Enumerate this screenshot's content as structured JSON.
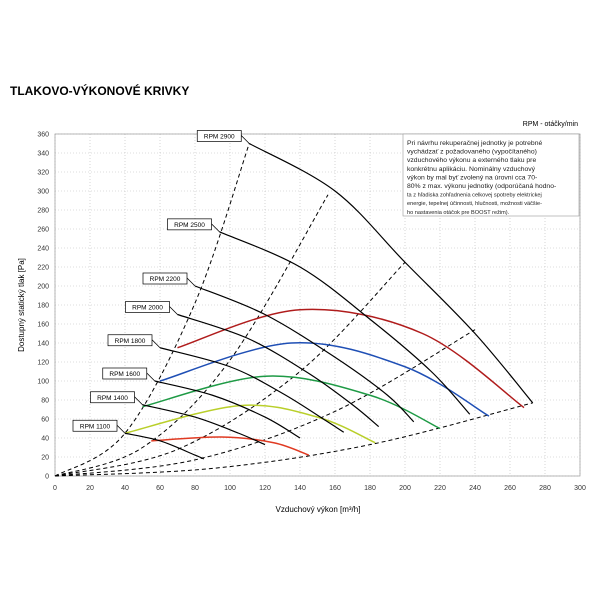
{
  "chart_data": {
    "type": "line",
    "title": "TLAKOVO-VÝKONOVÉ KRIVKY",
    "x_label": "Vzduchový výkon [m³/h]",
    "y_label": "Dostupný statický tlak [Pa]",
    "legend_title": "RPM - otáčky/min",
    "note": [
      "Pri návrhu rekuperačnej jednotky je potrebné",
      "vychádzať z požadovaného (vypočítaného)",
      "vzduchového výkonu a externého tlaku pre",
      "konkrétnu aplikáciu. Nominálny vzduchový",
      "výkon by mal byť zvolený na úrovni cca 70-",
      "80% z max. výkonu jednotky (odporúčaná hodno-",
      "ta z hľadiska zohľadnenia celkovej spotreby elektrickej",
      "energie, tepelnej účinnosti, hlučnosti, možnosti väčšie-",
      "ho nastavenia otáčok pre BOOST režim)."
    ],
    "xlim": [
      0,
      300
    ],
    "ylim": [
      0,
      360
    ],
    "xticks": [
      0,
      20,
      40,
      60,
      80,
      100,
      120,
      140,
      160,
      180,
      200,
      220,
      240,
      260,
      280,
      300
    ],
    "yticks": [
      0,
      20,
      40,
      60,
      80,
      100,
      120,
      140,
      160,
      180,
      200,
      220,
      240,
      260,
      280,
      300,
      320,
      340,
      360
    ],
    "grid": true,
    "series": [
      {
        "name": "RPM 2900",
        "color": "#000000",
        "x": [
          111,
          160,
          200,
          240,
          273
        ],
        "values": [
          350,
          300,
          225,
          150,
          77
        ]
      },
      {
        "name": "RPM 2500",
        "color": "#000000",
        "x": [
          94,
          140,
          180,
          215,
          237
        ],
        "values": [
          257,
          220,
          165,
          110,
          65
        ]
      },
      {
        "name": "RPM 2200",
        "color": "#000000",
        "x": [
          80,
          120,
          160,
          190,
          205
        ],
        "values": [
          200,
          170,
          125,
          85,
          57
        ]
      },
      {
        "name": "RPM 2000",
        "color": "#000000",
        "x": [
          70,
          110,
          145,
          170,
          185
        ],
        "values": [
          170,
          145,
          108,
          75,
          52
        ]
      },
      {
        "name": "RPM 1800",
        "color": "#000000",
        "x": [
          60,
          100,
          130,
          155,
          165
        ],
        "values": [
          135,
          115,
          87,
          58,
          46
        ]
      },
      {
        "name": "RPM 1600",
        "color": "#000000",
        "x": [
          57,
          90,
          120,
          140
        ],
        "values": [
          100,
          85,
          62,
          40
        ]
      },
      {
        "name": "RPM 1400",
        "color": "#000000",
        "x": [
          50,
          80,
          105,
          120
        ],
        "values": [
          75,
          62,
          45,
          33
        ]
      },
      {
        "name": "RPM 1100",
        "color": "#000000",
        "x": [
          40,
          60,
          80,
          85
        ],
        "values": [
          45,
          37,
          22,
          18
        ]
      }
    ],
    "efficiency_curves": [
      {
        "color": "#b01c1c",
        "x": [
          70,
          140,
          210,
          268
        ],
        "values": [
          135,
          175,
          150,
          72
        ]
      },
      {
        "color": "#1f4fb5",
        "x": [
          60,
          135,
          200,
          248
        ],
        "values": [
          100,
          140,
          115,
          63
        ]
      },
      {
        "color": "#1e9a45",
        "x": [
          50,
          120,
          180,
          220
        ],
        "values": [
          73,
          105,
          85,
          50
        ]
      },
      {
        "color": "#b9cf2a",
        "x": [
          40,
          105,
          150,
          183
        ],
        "values": [
          45,
          74,
          62,
          35
        ]
      },
      {
        "color": "#e03a22",
        "x": [
          55,
          95,
          125,
          145
        ],
        "values": [
          37,
          41,
          35,
          22
        ]
      }
    ],
    "system_curves": [
      {
        "color": "#000000",
        "x": [
          0,
          40,
          80,
          111
        ],
        "values": [
          0,
          45,
          182,
          350
        ]
      },
      {
        "color": "#000000",
        "x": [
          0,
          50,
          100,
          156
        ],
        "values": [
          0,
          30,
          122,
          296
        ]
      },
      {
        "color": "#000000",
        "x": [
          0,
          70,
          140,
          200
        ],
        "values": [
          0,
          28,
          110,
          225
        ]
      },
      {
        "color": "#000000",
        "x": [
          0,
          80,
          160,
          240
        ],
        "values": [
          0,
          17,
          68,
          154
        ]
      },
      {
        "color": "#000000",
        "x": [
          0,
          90,
          180,
          273
        ],
        "values": [
          0,
          8,
          33,
          77
        ]
      }
    ]
  }
}
